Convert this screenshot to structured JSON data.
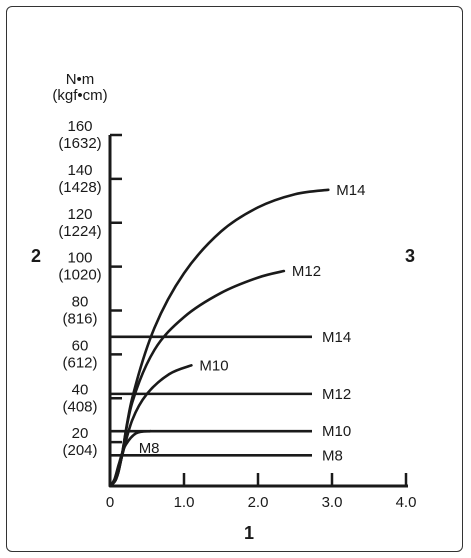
{
  "chart_data": {
    "type": "line",
    "y_unit": "N•m",
    "y_unit_alt": "(kgf•cm)",
    "x_ticks": [
      "0",
      "1.0",
      "2.0",
      "3.0",
      "4.0"
    ],
    "y_ticks": [
      {
        "value": 20,
        "label": "20",
        "alt": "(204)"
      },
      {
        "value": 40,
        "label": "40",
        "alt": "(408)"
      },
      {
        "value": 60,
        "label": "60",
        "alt": "(612)"
      },
      {
        "value": 80,
        "label": "80",
        "alt": "(816)"
      },
      {
        "value": 100,
        "label": "100",
        "alt": "(1020)"
      },
      {
        "value": 120,
        "label": "120",
        "alt": "(1224)"
      },
      {
        "value": 140,
        "label": "140",
        "alt": "(1428)"
      },
      {
        "value": 160,
        "label": "160",
        "alt": "(1632)"
      }
    ],
    "xlim": [
      0,
      4.0
    ],
    "ylim": [
      0,
      160
    ],
    "curves": [
      {
        "name": "M14",
        "points": [
          [
            0,
            0
          ],
          [
            0.08,
            3
          ],
          [
            0.15,
            12
          ],
          [
            0.3,
            40
          ],
          [
            0.6,
            72
          ],
          [
            1.0,
            97
          ],
          [
            1.5,
            116
          ],
          [
            2.0,
            127
          ],
          [
            2.5,
            133
          ],
          [
            2.95,
            135
          ]
        ]
      },
      {
        "name": "M12",
        "points": [
          [
            0,
            0
          ],
          [
            0.08,
            3
          ],
          [
            0.15,
            12
          ],
          [
            0.3,
            38
          ],
          [
            0.6,
            62
          ],
          [
            1.0,
            77
          ],
          [
            1.5,
            88
          ],
          [
            2.0,
            95
          ],
          [
            2.35,
            98
          ]
        ]
      },
      {
        "name": "M10",
        "points": [
          [
            0,
            0
          ],
          [
            0.08,
            3
          ],
          [
            0.15,
            12
          ],
          [
            0.3,
            30
          ],
          [
            0.5,
            42
          ],
          [
            0.8,
            51
          ],
          [
            1.1,
            55
          ]
        ]
      },
      {
        "name": "M8",
        "points": [
          [
            0,
            0
          ],
          [
            0.06,
            3
          ],
          [
            0.12,
            10
          ],
          [
            0.2,
            18
          ],
          [
            0.35,
            24
          ],
          [
            0.55,
            25
          ]
        ]
      }
    ],
    "reference_lines": [
      {
        "name": "M14",
        "y": 68
      },
      {
        "name": "M12",
        "y": 42
      },
      {
        "name": "M10",
        "y": 25
      },
      {
        "name": "M8",
        "y": 14
      }
    ],
    "side_labels": {
      "left": "2",
      "right": "3",
      "bottom": "1"
    }
  }
}
